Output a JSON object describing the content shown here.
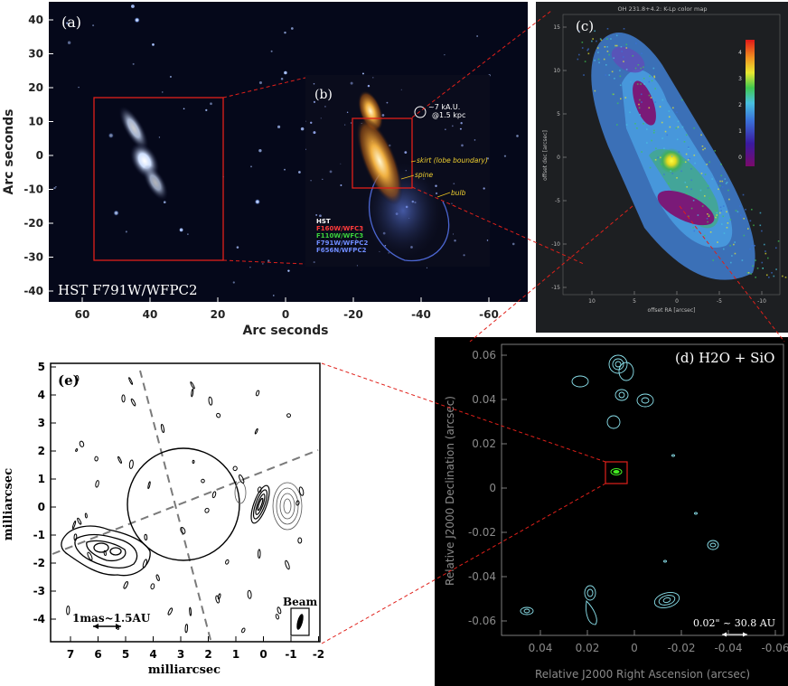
{
  "panel_a": {
    "label": "(a)",
    "caption": "HST F791W/WFPC2",
    "xlabel": "Arc seconds",
    "ylabel": "Arc seconds",
    "xticks": [
      "60",
      "40",
      "20",
      "0",
      "-20",
      "-40",
      "-60"
    ],
    "yticks": [
      "40",
      "30",
      "20",
      "10",
      "0",
      "-10",
      "-20",
      "-30",
      "-40"
    ]
  },
  "panel_b": {
    "label": "(b)",
    "scale": "~7 kA.U.\n@1.5 kpc",
    "scale_line1": "~7 kA.U.",
    "scale_line2": "@1.5 kpc",
    "ann_skirt": "skirt (lobe boundary)",
    "ann_spine": "spine",
    "ann_bulb": "bulb",
    "legend": [
      {
        "text": "HST",
        "color": "#ffffff"
      },
      {
        "text": "F160W/WFC3",
        "color": "#ff3b3b"
      },
      {
        "text": "F110W/WFC3",
        "color": "#3bd23b"
      },
      {
        "text": "F791W/WFPC2",
        "color": "#6f8cff"
      },
      {
        "text": "F656N/WFPC2",
        "color": "#6f8cff"
      }
    ]
  },
  "panel_c": {
    "label": "(c)",
    "title": "OH 231.8+4.2: K-Lp color map",
    "xlabel": "offset RA [arcsec]",
    "ylabel": "offset dec [arcsec]",
    "xticks": [
      "10",
      "5",
      "0",
      "-5",
      "-10"
    ],
    "yticks": [
      "15",
      "10",
      "5",
      "0",
      "-5",
      "-10",
      "-15"
    ],
    "colorbar_ticks": [
      "4",
      "3",
      "2",
      "1",
      "0"
    ]
  },
  "panel_d": {
    "label": "(d) H2O + SiO",
    "xlabel": "Relative J2000 Right Ascension (arcsec)",
    "ylabel": "Relative J2000 Declination (arcsec)",
    "xticks": [
      "0.04",
      "0.02",
      "0",
      "-0.02",
      "-0.04",
      "-0.06"
    ],
    "yticks": [
      "0.06",
      "0.04",
      "0.02",
      "0",
      "-0.02",
      "-0.04",
      "-0.06"
    ],
    "scale": "0.02\" ~ 30.8 AU"
  },
  "panel_e": {
    "label": "(e)",
    "xlabel": "milliarcsec",
    "ylabel": "milliarcsec",
    "xticks": [
      "7",
      "6",
      "5",
      "4",
      "3",
      "2",
      "1",
      "0",
      "-1",
      "-2"
    ],
    "yticks": [
      "5",
      "4",
      "3",
      "2",
      "1",
      "0",
      "-1",
      "-2",
      "-3",
      "-4"
    ],
    "scale": "1mas~1.5AU",
    "beam": "Beam"
  },
  "colors": {
    "connector": "#e0201a",
    "box": "#e0201a",
    "contour_cyan": "#8ce3ee",
    "contour_green": "#44ee22"
  }
}
